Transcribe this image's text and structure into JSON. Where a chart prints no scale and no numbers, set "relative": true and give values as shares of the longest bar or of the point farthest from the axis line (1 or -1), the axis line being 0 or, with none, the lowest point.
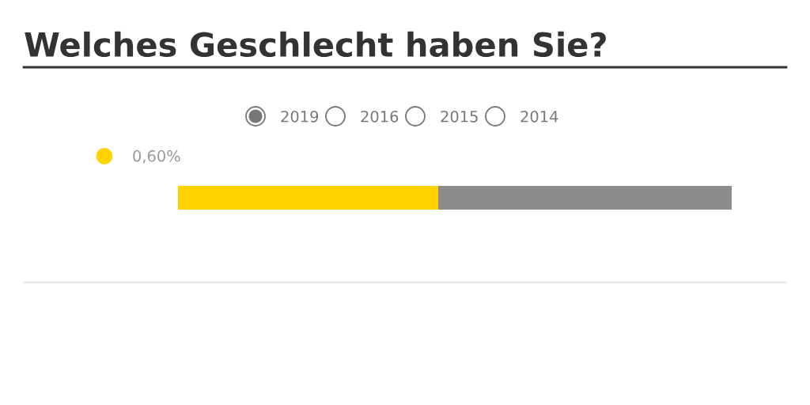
{
  "chart_data": {
    "type": "bar",
    "orientation": "horizontal",
    "stacked": true,
    "relative": true,
    "title": "Welches Geschlecht haben Sie?",
    "categories": [
      null
    ],
    "series": [
      {
        "name": "0,60%",
        "color": "#ffd200",
        "values": [
          0.47
        ]
      },
      {
        "color": "#8c8c8c",
        "values": [
          0.53
        ]
      }
    ],
    "legend": "top left",
    "annotations": [
      "2019",
      "2016",
      "2015",
      "2014"
    ],
    "grid": false
  }
}
